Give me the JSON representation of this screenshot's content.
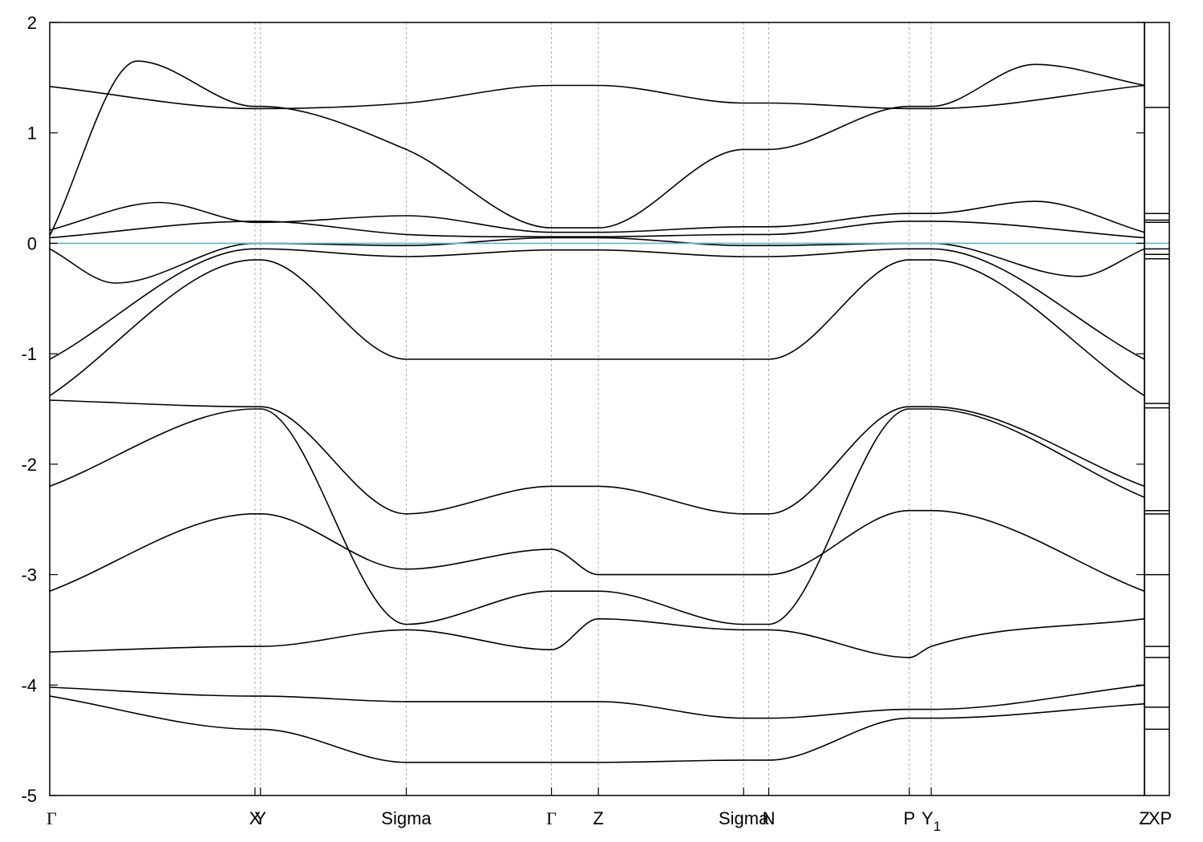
{
  "chart_data": {
    "type": "line",
    "title": "",
    "xlabel": "",
    "ylabel": "",
    "ylim": [
      -5,
      2
    ],
    "yticks": [
      -5,
      -4,
      -3,
      -2,
      -1,
      0,
      1,
      2
    ],
    "grid": "vertical dashed lines at high-symmetry points",
    "fermi_level": {
      "y": 0,
      "color": "#5fb4c8"
    },
    "band_color": "#000000",
    "xaxis_labels": [
      {
        "x": 0.0,
        "label": "Γ"
      },
      {
        "x": 0.1875,
        "label": "X"
      },
      {
        "x": 0.1925,
        "label": "Y"
      },
      {
        "x": 0.3257,
        "label": "Sigma"
      },
      {
        "x": 0.4583,
        "label": "Γ"
      },
      {
        "x": 0.5012,
        "label": "Z"
      },
      {
        "x": 0.6338,
        "label": "Sigma"
      },
      {
        "x": 0.6568,
        "label": "N"
      },
      {
        "x": 0.7852,
        "label": "P"
      },
      {
        "x": 0.8052,
        "label": "Y1"
      },
      {
        "x": 1.0,
        "label": "Z"
      },
      {
        "x": 1.04,
        "label": "XP"
      }
    ],
    "panel_breaks": [
      1.0
    ],
    "side_panel_levels": [
      1.23,
      0.27,
      0.21,
      0.19,
      -0.05,
      -0.1,
      -0.14,
      -1.45,
      -1.49,
      -2.42,
      -2.45,
      -3.0,
      -3.65,
      -3.75,
      -4.2,
      -4.4
    ],
    "series": [
      {
        "x": [
          0,
          0.1875,
          0.1925,
          0.3257,
          0.4583,
          0.5012,
          0.6338,
          0.6568,
          0.7852,
          0.8052,
          1.0
        ],
        "values": [
          1.42,
          1.22,
          1.22,
          1.27,
          1.43,
          1.43,
          1.27,
          1.27,
          1.22,
          1.22,
          1.43
        ]
      },
      {
        "x": [
          0,
          0.08,
          0.1875,
          0.1925,
          0.3257,
          0.4583,
          0.5012,
          0.6338,
          0.6568,
          0.7852,
          0.8052,
          0.9,
          1.0
        ],
        "values": [
          0.07,
          1.65,
          1.24,
          1.24,
          0.85,
          0.14,
          0.14,
          0.85,
          0.85,
          1.24,
          1.24,
          1.62,
          1.43
        ]
      },
      {
        "x": [
          0,
          0.1,
          0.1875,
          0.1925,
          0.3257,
          0.4583,
          0.5012,
          0.6338,
          0.6568,
          0.7852,
          0.8052,
          0.9,
          1.0
        ],
        "values": [
          0.12,
          0.37,
          0.19,
          0.19,
          0.25,
          0.1,
          0.1,
          0.15,
          0.15,
          0.27,
          0.27,
          0.38,
          0.1
        ]
      },
      {
        "x": [
          0,
          0.1875,
          0.1925,
          0.3257,
          0.4583,
          0.5012,
          0.6338,
          0.6568,
          0.7852,
          0.8052,
          1.0
        ],
        "values": [
          0.05,
          0.2,
          0.2,
          0.08,
          0.06,
          0.06,
          0.08,
          0.08,
          0.2,
          0.2,
          0.05
        ]
      },
      {
        "x": [
          0,
          0.06,
          0.1875,
          0.1925,
          0.3257,
          0.4583,
          0.5012,
          0.6338,
          0.6568,
          0.7852,
          0.8052,
          0.94,
          1.0
        ],
        "values": [
          -0.05,
          -0.36,
          0.0,
          0.0,
          -0.02,
          0.05,
          0.05,
          -0.02,
          -0.02,
          0.0,
          0.0,
          -0.3,
          -0.05
        ]
      },
      {
        "x": [
          0,
          0.1875,
          0.1925,
          0.3257,
          0.4583,
          0.5012,
          0.6338,
          0.6568,
          0.7852,
          0.8052,
          1.0
        ],
        "values": [
          -1.05,
          -0.05,
          -0.05,
          -0.12,
          -0.06,
          -0.06,
          -0.12,
          -0.12,
          -0.05,
          -0.05,
          -1.05
        ]
      },
      {
        "x": [
          0,
          0.1875,
          0.1925,
          0.3257,
          0.4583,
          0.5012,
          0.6338,
          0.6568,
          0.7852,
          0.8052,
          1.0
        ],
        "values": [
          -1.38,
          -0.15,
          -0.15,
          -1.05,
          -1.05,
          -1.05,
          -1.05,
          -1.05,
          -0.15,
          -0.15,
          -1.38
        ]
      },
      {
        "x": [
          0,
          0.1875,
          0.1925,
          0.3257,
          0.4583,
          0.5012,
          0.6338,
          0.6568,
          0.7852,
          0.8052,
          1.0
        ],
        "values": [
          -1.42,
          -1.48,
          -1.48,
          -2.45,
          -2.2,
          -2.2,
          -2.45,
          -2.45,
          -1.48,
          -1.48,
          -2.2
        ]
      },
      {
        "x": [
          0,
          0.1875,
          0.1925,
          0.3257,
          0.4583,
          0.5012,
          0.6338,
          0.6568,
          0.7852,
          0.8052,
          1.0
        ],
        "values": [
          -2.2,
          -1.5,
          -1.5,
          -3.45,
          -3.15,
          -3.15,
          -3.45,
          -3.45,
          -1.5,
          -1.5,
          -2.3
        ]
      },
      {
        "x": [
          0,
          0.1875,
          0.1925,
          0.3257,
          0.4583,
          0.5012,
          0.6338,
          0.6568,
          0.7852,
          0.8052,
          1.0
        ],
        "values": [
          -3.15,
          -2.45,
          -2.45,
          -2.95,
          -2.77,
          -3.0,
          -3.0,
          -3.0,
          -2.42,
          -2.42,
          -3.15
        ]
      },
      {
        "x": [
          0,
          0.1875,
          0.1925,
          0.3257,
          0.4583,
          0.5012,
          0.6338,
          0.6568,
          0.7852,
          0.8052,
          1.0
        ],
        "values": [
          -3.7,
          -3.65,
          -3.65,
          -3.5,
          -3.68,
          -3.4,
          -3.5,
          -3.5,
          -3.75,
          -3.65,
          -3.4
        ]
      },
      {
        "x": [
          0,
          0.1875,
          0.1925,
          0.3257,
          0.4583,
          0.5012,
          0.6338,
          0.6568,
          0.7852,
          0.8052,
          1.0
        ],
        "values": [
          -4.02,
          -4.1,
          -4.1,
          -4.15,
          -4.15,
          -4.15,
          -4.3,
          -4.3,
          -4.22,
          -4.22,
          -4.0
        ]
      },
      {
        "x": [
          0,
          0.1875,
          0.1925,
          0.3257,
          0.4583,
          0.5012,
          0.6338,
          0.6568,
          0.7852,
          0.8052,
          1.0
        ],
        "values": [
          -4.1,
          -4.4,
          -4.4,
          -4.7,
          -4.7,
          -4.7,
          -4.68,
          -4.68,
          -4.3,
          -4.3,
          -4.17
        ]
      }
    ]
  }
}
